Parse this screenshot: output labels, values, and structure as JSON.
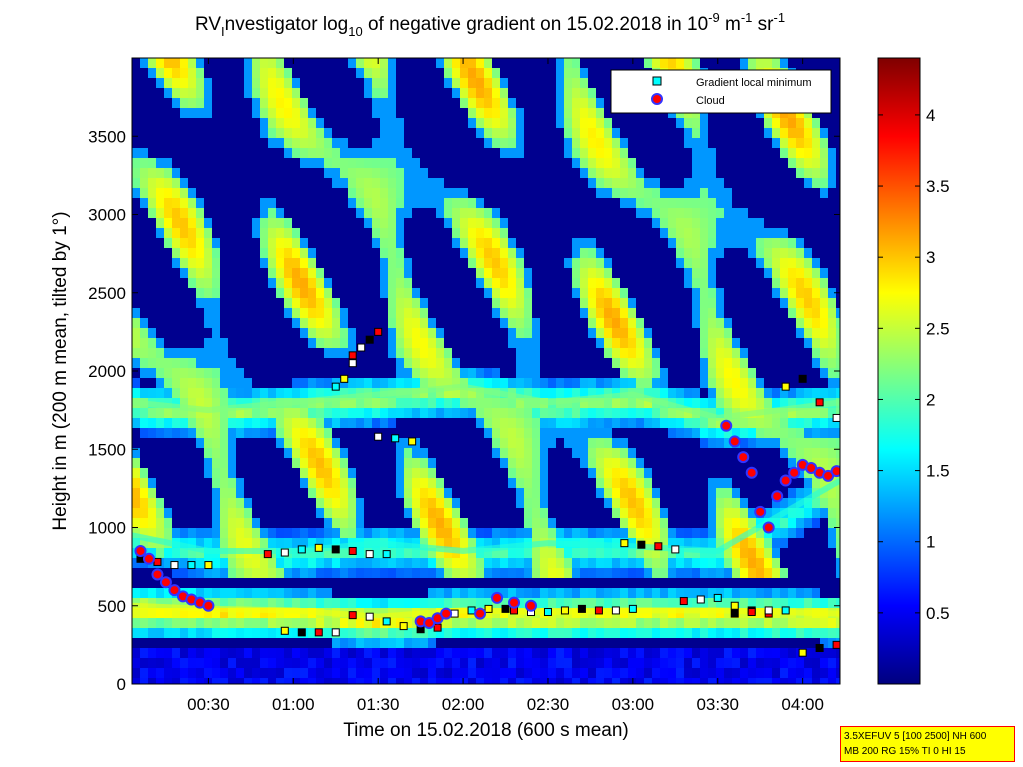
{
  "chart_data": {
    "type": "heatmap",
    "title_parts": {
      "prefix": "RV",
      "sub1": "I",
      "mid": "nvestigator log",
      "sub2": "10",
      "mid2": " of negative gradient on 15.02.2018 in 10",
      "sup1": "-9",
      "mid3": " m",
      "sup2": "-1",
      "mid4": " sr",
      "sup3": "-1"
    },
    "xlabel": "Time on 15.02.2018 (600 s mean)",
    "ylabel": "Height in m (200 m mean, tilted by 1°)",
    "x_range_hours": [
      0.05,
      4.22
    ],
    "x_tick_values_hours": [
      0.5,
      1.0,
      1.5,
      2.0,
      2.5,
      3.0,
      3.5,
      4.0
    ],
    "x_tick_labels": [
      "00:30",
      "01:00",
      "01:30",
      "02:00",
      "02:30",
      "03:00",
      "03:30",
      "04:00"
    ],
    "ylim": [
      0,
      4000
    ],
    "y_tick_values": [
      0,
      500,
      1000,
      1500,
      2000,
      2500,
      3000,
      3500
    ],
    "y_tick_labels": [
      "0",
      "500",
      "1000",
      "1500",
      "2000",
      "2500",
      "3000",
      "3500"
    ],
    "colorbar": {
      "range": [
        0,
        4.4
      ],
      "tick_values": [
        0.5,
        1,
        1.5,
        2,
        2.5,
        3,
        3.5,
        4
      ],
      "tick_labels": [
        "0.5",
        "1",
        "1.5",
        "2",
        "2.5",
        "3",
        "3.5",
        "4"
      ],
      "colormap": "jet"
    },
    "legend": {
      "placement": "top-right",
      "entries": [
        {
          "label": "Gradient local minimum",
          "marker": "square",
          "color": "#00ffff"
        },
        {
          "label": "Cloud",
          "marker": "circle",
          "color": "#ff0000"
        }
      ]
    },
    "layers": [
      {
        "kind": "boundary-layer",
        "x": [
          0.05,
          0.5,
          1.0,
          1.5,
          2.0,
          2.5,
          3.0,
          3.5,
          4.22
        ],
        "y": [
          500,
          480,
          470,
          430,
          470,
          460,
          470,
          470,
          450
        ],
        "value": 2.7
      },
      {
        "kind": "residual-layer",
        "x": [
          0.05,
          0.5,
          1.0,
          1.5,
          2.0,
          2.5,
          3.0,
          3.5,
          4.22
        ],
        "y": [
          950,
          850,
          850,
          900,
          850,
          900,
          880,
          850,
          1300
        ],
        "value": 1.8
      },
      {
        "kind": "upper-layer",
        "x": [
          0.05,
          0.5,
          1.0,
          1.5,
          2.0,
          2.5,
          3.0,
          3.5,
          4.22
        ],
        "y": [
          1800,
          1750,
          1800,
          1850,
          1900,
          1800,
          1850,
          1700,
          1800
        ],
        "value": 2.2
      }
    ],
    "gradient_minima": [
      {
        "x": [
          0.1,
          0.2,
          0.3,
          0.4,
          0.5
        ],
        "y": [
          800,
          780,
          760,
          760,
          760
        ]
      },
      {
        "x": [
          0.85,
          0.95,
          1.05,
          1.15,
          1.25,
          1.35,
          1.45,
          1.55
        ],
        "y": [
          830,
          840,
          860,
          870,
          860,
          850,
          830,
          830
        ]
      },
      {
        "x": [
          1.35,
          1.45,
          1.55,
          1.65,
          1.75,
          1.85,
          1.95,
          2.05,
          2.15,
          2.25
        ],
        "y": [
          440,
          430,
          400,
          370,
          350,
          360,
          450,
          470,
          480,
          480
        ]
      },
      {
        "x": [
          2.3,
          2.4,
          2.5,
          2.6,
          2.7,
          2.8,
          2.9,
          3.0
        ],
        "y": [
          470,
          460,
          460,
          470,
          480,
          470,
          470,
          480
        ]
      },
      {
        "x": [
          0.95,
          1.05,
          1.15,
          1.25
        ],
        "y": [
          340,
          330,
          330,
          330
        ]
      },
      {
        "x": [
          2.95,
          3.05,
          3.15,
          3.25
        ],
        "y": [
          900,
          890,
          880,
          860
        ]
      },
      {
        "x": [
          3.3,
          3.4,
          3.5,
          3.6,
          3.7,
          3.8
        ],
        "y": [
          530,
          540,
          550,
          500,
          470,
          450
        ]
      },
      {
        "x": [
          3.6,
          3.7,
          3.8,
          3.9,
          4.0,
          4.1,
          4.2
        ],
        "y": [
          450,
          460,
          470,
          470,
          200,
          230,
          250
        ]
      },
      {
        "x": [
          1.25,
          1.3,
          1.35
        ],
        "y": [
          1900,
          1950,
          2050
        ]
      },
      {
        "x": [
          1.35,
          1.4,
          1.45,
          1.5
        ],
        "y": [
          2100,
          2150,
          2200,
          2250
        ]
      },
      {
        "x": [
          1.5,
          1.6,
          1.7
        ],
        "y": [
          1580,
          1570,
          1550
        ]
      },
      {
        "x": [
          3.9,
          4.0,
          4.1,
          4.2
        ],
        "y": [
          1900,
          1950,
          1800,
          1700
        ]
      }
    ],
    "cloud_points": [
      {
        "x": [
          0.1,
          0.15,
          0.2,
          0.25,
          0.3,
          0.35,
          0.4,
          0.45,
          0.5
        ],
        "y": [
          850,
          800,
          700,
          650,
          600,
          560,
          540,
          520,
          500
        ]
      },
      {
        "x": [
          1.75,
          1.8,
          1.85,
          1.9
        ],
        "y": [
          400,
          390,
          420,
          450
        ]
      },
      {
        "x": [
          2.1,
          2.2,
          2.3,
          2.4
        ],
        "y": [
          450,
          550,
          520,
          500
        ]
      },
      {
        "x": [
          3.55,
          3.6,
          3.65,
          3.7,
          3.75,
          3.8,
          3.85,
          3.9,
          3.95,
          4.0,
          4.05,
          4.1,
          4.15,
          4.2
        ],
        "y": [
          1650,
          1550,
          1450,
          1350,
          1100,
          1000,
          1200,
          1300,
          1350,
          1400,
          1380,
          1350,
          1330,
          1360
        ]
      }
    ]
  }
}
